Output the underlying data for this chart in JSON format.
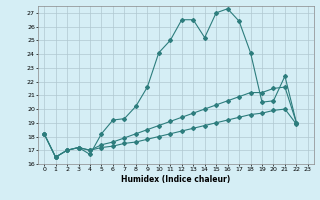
{
  "xlabel": "Humidex (Indice chaleur)",
  "ylabel": "",
  "xlim": [
    -0.5,
    23.5
  ],
  "ylim": [
    16,
    27.5
  ],
  "yticks": [
    16,
    17,
    18,
    19,
    20,
    21,
    22,
    23,
    24,
    25,
    26,
    27
  ],
  "xticks": [
    0,
    1,
    2,
    3,
    4,
    5,
    6,
    7,
    8,
    9,
    10,
    11,
    12,
    13,
    14,
    15,
    16,
    17,
    18,
    19,
    20,
    21,
    22,
    23
  ],
  "bg_color": "#d5eef5",
  "line_color": "#2d7d7d",
  "grid_color": "#b0c8d0",
  "series": [
    {
      "x": [
        0,
        1,
        2,
        3,
        4,
        5,
        6,
        7,
        8,
        9,
        10,
        11,
        12,
        13,
        14,
        15,
        16,
        17,
        18,
        19,
        20,
        21,
        22
      ],
      "y": [
        18.2,
        16.5,
        17.0,
        17.2,
        16.7,
        18.2,
        19.2,
        19.3,
        20.2,
        21.6,
        24.1,
        25.0,
        26.5,
        26.5,
        25.2,
        27.0,
        27.3,
        26.4,
        24.1,
        20.5,
        20.6,
        22.4,
        19.0
      ]
    },
    {
      "x": [
        0,
        1,
        2,
        3,
        4,
        5,
        6,
        7,
        8,
        9,
        10,
        11,
        12,
        13,
        14,
        15,
        16,
        17,
        18,
        19,
        20,
        21,
        22
      ],
      "y": [
        18.2,
        16.5,
        17.0,
        17.2,
        17.0,
        17.4,
        17.6,
        17.9,
        18.2,
        18.5,
        18.8,
        19.1,
        19.4,
        19.7,
        20.0,
        20.3,
        20.6,
        20.9,
        21.2,
        21.2,
        21.5,
        21.6,
        19.0
      ]
    },
    {
      "x": [
        0,
        1,
        2,
        3,
        4,
        5,
        6,
        7,
        8,
        9,
        10,
        11,
        12,
        13,
        14,
        15,
        16,
        17,
        18,
        19,
        20,
        21,
        22
      ],
      "y": [
        18.2,
        16.5,
        17.0,
        17.2,
        17.0,
        17.2,
        17.3,
        17.5,
        17.6,
        17.8,
        18.0,
        18.2,
        18.4,
        18.6,
        18.8,
        19.0,
        19.2,
        19.4,
        19.6,
        19.7,
        19.9,
        20.0,
        18.9
      ]
    }
  ]
}
